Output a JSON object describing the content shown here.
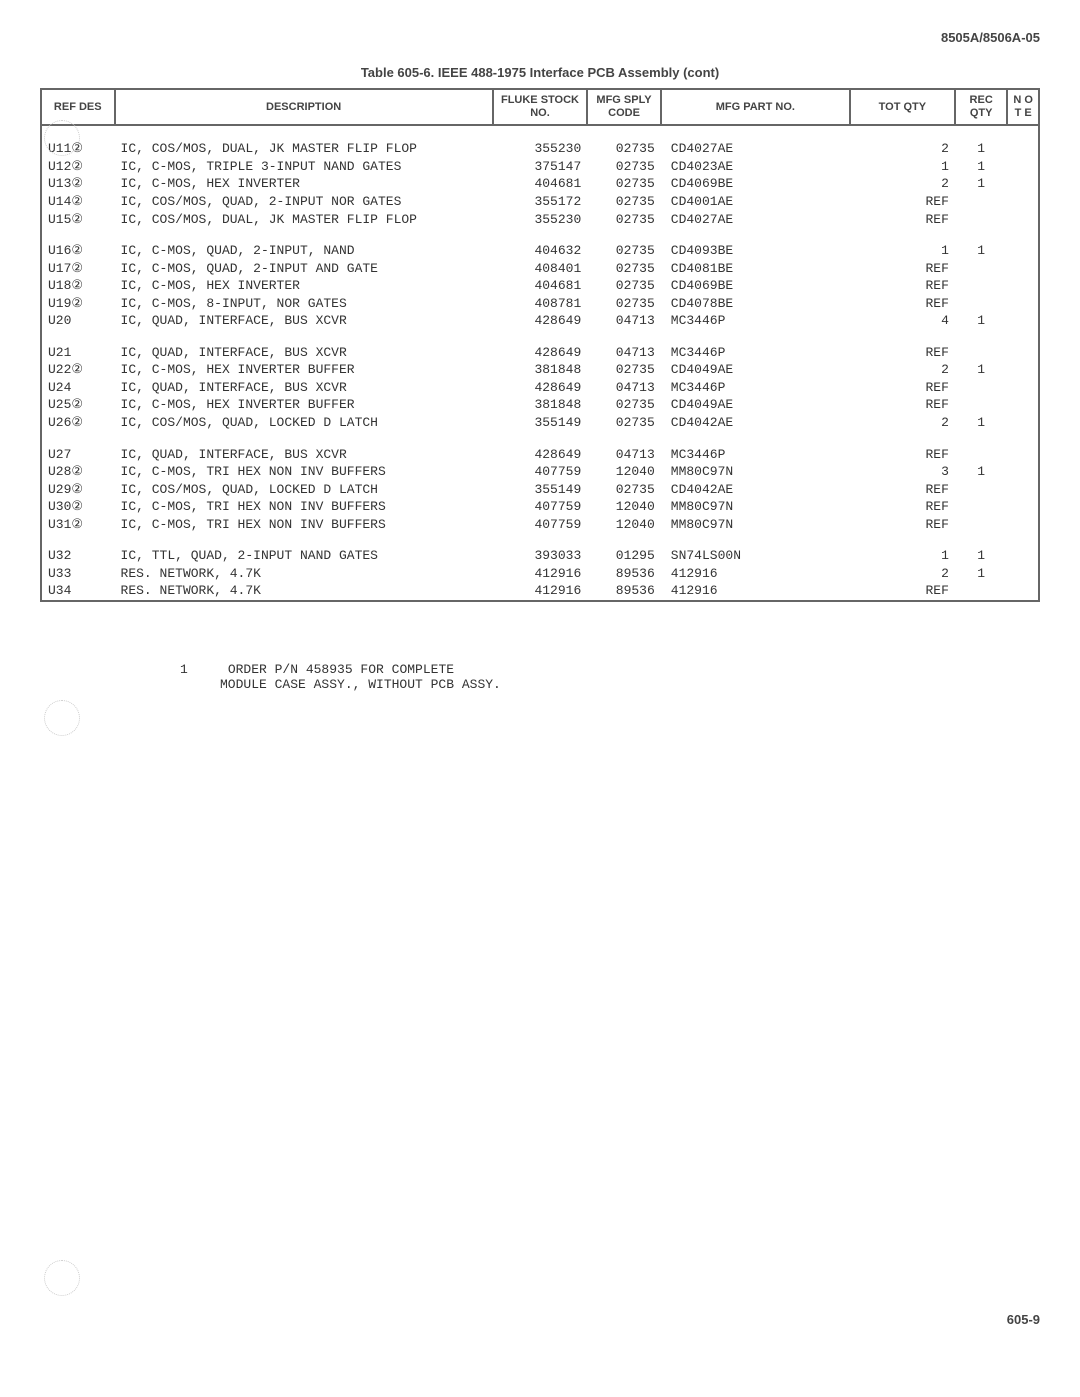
{
  "doc_id": "8505A/8506A-05",
  "table_title": "Table 605-6. IEEE 488-1975 Interface PCB Assembly (cont)",
  "page_num": "605-9",
  "headers": {
    "ref": "REF\nDES",
    "desc": "DESCRIPTION",
    "stock": "FLUKE\nSTOCK\nNO.",
    "sply": "MFG\nSPLY\nCODE",
    "part": "MFG PART NO.",
    "tot": "TOT\nQTY",
    "rec": "REC\nQTY",
    "note": "N\nO\nT\nE"
  },
  "groups": [
    [
      {
        "ref": "U11②",
        "desc": "IC, COS/MOS, DUAL, JK MASTER FLIP FLOP",
        "stock": "355230",
        "sply": "02735",
        "part": "CD4027AE",
        "tot": "2",
        "rec": "1",
        "note": ""
      },
      {
        "ref": "U12②",
        "desc": "IC, C-MOS, TRIPLE 3-INPUT NAND GATES",
        "stock": "375147",
        "sply": "02735",
        "part": "CD4023AE",
        "tot": "1",
        "rec": "1",
        "note": ""
      },
      {
        "ref": "U13②",
        "desc": "IC, C-MOS, HEX INVERTER",
        "stock": "404681",
        "sply": "02735",
        "part": "CD4069BE",
        "tot": "2",
        "rec": "1",
        "note": ""
      },
      {
        "ref": "U14②",
        "desc": "IC, COS/MOS, QUAD, 2-INPUT NOR GATES",
        "stock": "355172",
        "sply": "02735",
        "part": "CD4001AE",
        "tot": "REF",
        "rec": "",
        "note": ""
      },
      {
        "ref": "U15②",
        "desc": "IC, COS/MOS, DUAL, JK MASTER FLIP FLOP",
        "stock": "355230",
        "sply": "02735",
        "part": "CD4027AE",
        "tot": "REF",
        "rec": "",
        "note": ""
      }
    ],
    [
      {
        "ref": "U16②",
        "desc": "IC, C-MOS, QUAD, 2-INPUT, NAND",
        "stock": "404632",
        "sply": "02735",
        "part": "CD4093BE",
        "tot": "1",
        "rec": "1",
        "note": ""
      },
      {
        "ref": "U17②",
        "desc": "IC, C-MOS, QUAD, 2-INPUT AND GATE",
        "stock": "408401",
        "sply": "02735",
        "part": "CD4081BE",
        "tot": "REF",
        "rec": "",
        "note": ""
      },
      {
        "ref": "U18②",
        "desc": "IC, C-MOS, HEX INVERTER",
        "stock": "404681",
        "sply": "02735",
        "part": "CD4069BE",
        "tot": "REF",
        "rec": "",
        "note": ""
      },
      {
        "ref": "U19②",
        "desc": "IC, C-MOS, 8-INPUT, NOR GATES",
        "stock": "408781",
        "sply": "02735",
        "part": "CD4078BE",
        "tot": "REF",
        "rec": "",
        "note": ""
      },
      {
        "ref": "U20",
        "desc": "IC, QUAD, INTERFACE, BUS XCVR",
        "stock": "428649",
        "sply": "04713",
        "part": "MC3446P",
        "tot": "4",
        "rec": "1",
        "note": ""
      }
    ],
    [
      {
        "ref": "U21",
        "desc": "IC, QUAD, INTERFACE, BUS XCVR",
        "stock": "428649",
        "sply": "04713",
        "part": "MC3446P",
        "tot": "REF",
        "rec": "",
        "note": ""
      },
      {
        "ref": "U22②",
        "desc": "IC, C-MOS, HEX INVERTER BUFFER",
        "stock": "381848",
        "sply": "02735",
        "part": "CD4049AE",
        "tot": "2",
        "rec": "1",
        "note": ""
      },
      {
        "ref": "U24",
        "desc": "IC, QUAD, INTERFACE, BUS XCVR",
        "stock": "428649",
        "sply": "04713",
        "part": "MC3446P",
        "tot": "REF",
        "rec": "",
        "note": ""
      },
      {
        "ref": "U25②",
        "desc": "IC, C-MOS, HEX INVERTER BUFFER",
        "stock": "381848",
        "sply": "02735",
        "part": "CD4049AE",
        "tot": "REF",
        "rec": "",
        "note": ""
      },
      {
        "ref": "U26②",
        "desc": "IC, COS/MOS, QUAD, LOCKED D LATCH",
        "stock": "355149",
        "sply": "02735",
        "part": "CD4042AE",
        "tot": "2",
        "rec": "1",
        "note": ""
      }
    ],
    [
      {
        "ref": "U27",
        "desc": "IC, QUAD, INTERFACE, BUS XCVR",
        "stock": "428649",
        "sply": "04713",
        "part": "MC3446P",
        "tot": "REF",
        "rec": "",
        "note": ""
      },
      {
        "ref": "U28②",
        "desc": "IC, C-MOS, TRI HEX NON INV BUFFERS",
        "stock": "407759",
        "sply": "12040",
        "part": "MM80C97N",
        "tot": "3",
        "rec": "1",
        "note": ""
      },
      {
        "ref": "U29②",
        "desc": "IC, COS/MOS, QUAD, LOCKED D LATCH",
        "stock": "355149",
        "sply": "02735",
        "part": "CD4042AE",
        "tot": "REF",
        "rec": "",
        "note": ""
      },
      {
        "ref": "U30②",
        "desc": "IC, C-MOS, TRI HEX NON INV BUFFERS",
        "stock": "407759",
        "sply": "12040",
        "part": "MM80C97N",
        "tot": "REF",
        "rec": "",
        "note": ""
      },
      {
        "ref": "U31②",
        "desc": "IC, C-MOS, TRI HEX NON INV BUFFERS",
        "stock": "407759",
        "sply": "12040",
        "part": "MM80C97N",
        "tot": "REF",
        "rec": "",
        "note": ""
      }
    ],
    [
      {
        "ref": "U32",
        "desc": "IC, TTL, QUAD, 2-INPUT NAND GATES",
        "stock": "393033",
        "sply": "01295",
        "part": "SN74LS00N",
        "tot": "1",
        "rec": "1",
        "note": ""
      },
      {
        "ref": "U33",
        "desc": "RES. NETWORK, 4.7K",
        "stock": "412916",
        "sply": "89536",
        "part": "412916",
        "tot": "2",
        "rec": "1",
        "note": ""
      },
      {
        "ref": "U34",
        "desc": "RES. NETWORK, 4.7K",
        "stock": "412916",
        "sply": "89536",
        "part": "412916",
        "tot": "REF",
        "rec": "",
        "note": ""
      }
    ]
  ],
  "footnote": {
    "num": "1",
    "line1": "ORDER P/N 458935 FOR COMPLETE",
    "line2": "MODULE CASE ASSY., WITHOUT PCB ASSY."
  }
}
